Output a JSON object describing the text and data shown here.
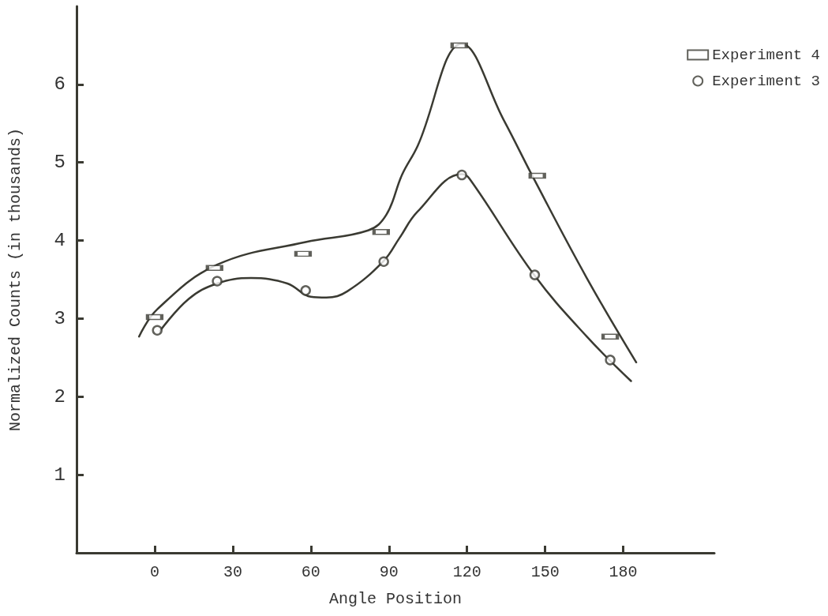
{
  "chart_data": {
    "type": "scatter",
    "xlabel": "Angle Position",
    "ylabel": "Normalized Counts (in thousands)",
    "xlim": [
      -30,
      215
    ],
    "xticks": [
      0,
      30,
      60,
      90,
      120,
      150,
      180
    ],
    "ylim": [
      0,
      7
    ],
    "yticks": [
      1,
      2,
      3,
      4,
      5,
      6
    ],
    "legend": "top right",
    "grid": false,
    "series": [
      {
        "name": "Experiment 4",
        "marker": "square",
        "color": "#3a3a32",
        "x": [
          0,
          23,
          57,
          87,
          117,
          147,
          175
        ],
        "values": [
          3.02,
          3.65,
          3.83,
          4.11,
          6.5,
          4.83,
          2.77
        ]
      },
      {
        "name": "Experiment 3",
        "marker": "circle",
        "color": "#3a3a32",
        "x": [
          1,
          24,
          58,
          88,
          118,
          146,
          175
        ],
        "values": [
          2.85,
          3.48,
          3.36,
          3.73,
          4.84,
          3.56,
          2.47
        ]
      },
      {
        "type": "line",
        "marker": "none",
        "color": "#3a3a32",
        "x": [
          -6,
          1,
          24,
          58,
          82,
          89,
          95,
          101,
          118,
          134,
          146,
          166,
          185
        ],
        "values": [
          2.77,
          3.12,
          3.69,
          3.98,
          4.13,
          4.33,
          4.84,
          5.21,
          6.52,
          5.55,
          4.77,
          3.52,
          2.44
        ]
      },
      {
        "type": "line",
        "marker": "none",
        "color": "#3a3a32",
        "x": [
          2,
          13,
          24,
          37,
          51,
          60,
          66,
          74,
          88,
          94,
          101,
          118,
          121,
          146,
          166,
          183
        ],
        "values": [
          2.84,
          3.25,
          3.45,
          3.52,
          3.45,
          3.28,
          3.27,
          3.35,
          3.74,
          4.03,
          4.37,
          4.85,
          4.79,
          3.55,
          2.77,
          2.2
        ]
      }
    ]
  }
}
